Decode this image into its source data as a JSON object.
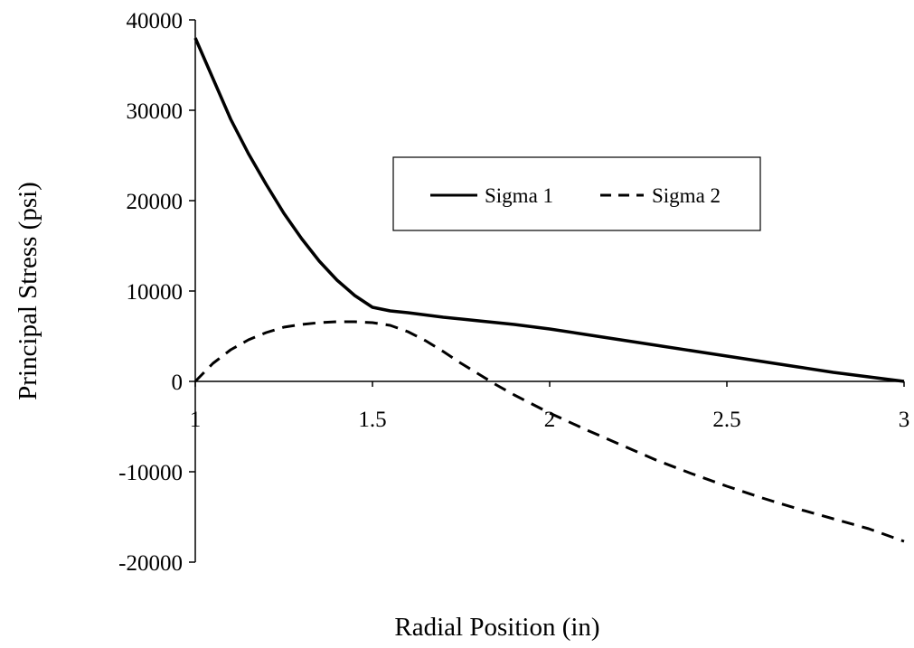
{
  "chart_data": {
    "type": "line",
    "title": "",
    "xlabel": "Radial Position (in)",
    "ylabel": "Principal Stress (psi)",
    "xlim": [
      1,
      3
    ],
    "ylim": [
      -20000,
      40000
    ],
    "x_ticks": [
      "1",
      "1.5",
      "2",
      "2.5",
      "3"
    ],
    "x_tick_values": [
      1,
      1.5,
      2,
      2.5,
      3
    ],
    "y_ticks": [
      "40000",
      "30000",
      "20000",
      "10000",
      "0",
      "-10000",
      "-20000"
    ],
    "y_tick_values": [
      40000,
      30000,
      20000,
      10000,
      0,
      -10000,
      -20000
    ],
    "grid": false,
    "legend_position": "center-right",
    "series": [
      {
        "name": "Sigma 1",
        "line_style": "solid",
        "color": "#000000",
        "x": [
          1.0,
          1.05,
          1.1,
          1.15,
          1.2,
          1.25,
          1.3,
          1.35,
          1.4,
          1.45,
          1.5,
          1.55,
          1.6,
          1.7,
          1.8,
          1.9,
          2.0,
          2.1,
          2.2,
          2.3,
          2.4,
          2.5,
          2.6,
          2.7,
          2.8,
          2.9,
          3.0
        ],
        "y": [
          38000,
          33500,
          29000,
          25200,
          21800,
          18600,
          15800,
          13300,
          11200,
          9500,
          8200,
          7800,
          7600,
          7100,
          6700,
          6300,
          5800,
          5200,
          4600,
          4000,
          3400,
          2800,
          2200,
          1600,
          1000,
          500,
          0
        ]
      },
      {
        "name": "Sigma 2",
        "line_style": "dashed",
        "color": "#000000",
        "x": [
          1.0,
          1.05,
          1.1,
          1.15,
          1.2,
          1.25,
          1.3,
          1.35,
          1.4,
          1.45,
          1.5,
          1.55,
          1.6,
          1.65,
          1.7,
          1.75,
          1.8,
          1.85,
          1.9,
          2.0,
          2.1,
          2.2,
          2.3,
          2.4,
          2.5,
          2.6,
          2.7,
          2.8,
          2.9,
          3.0
        ],
        "y": [
          0,
          2000,
          3500,
          4600,
          5400,
          6000,
          6300,
          6500,
          6600,
          6600,
          6500,
          6200,
          5500,
          4500,
          3300,
          2000,
          800,
          -400,
          -1500,
          -3500,
          -5300,
          -7000,
          -8700,
          -10200,
          -11600,
          -12900,
          -14100,
          -15200,
          -16300,
          -17700
        ]
      }
    ]
  }
}
